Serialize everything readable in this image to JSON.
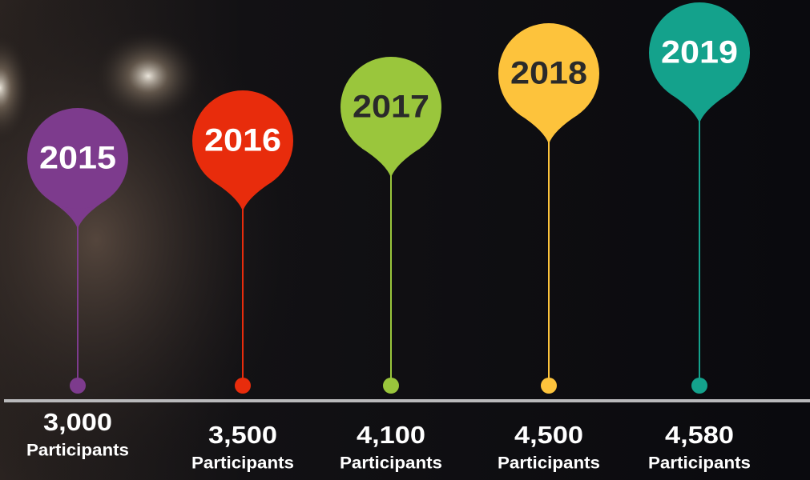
{
  "milestones": [
    {
      "year": "2015",
      "count": "3,000",
      "unit": "Participants"
    },
    {
      "year": "2016",
      "count": "3,500",
      "unit": "Participants"
    },
    {
      "year": "2017",
      "count": "4,100",
      "unit": "Participants"
    },
    {
      "year": "2018",
      "count": "4,500",
      "unit": "Participants"
    },
    {
      "year": "2019",
      "count": "4,580",
      "unit": "Participants"
    }
  ]
}
